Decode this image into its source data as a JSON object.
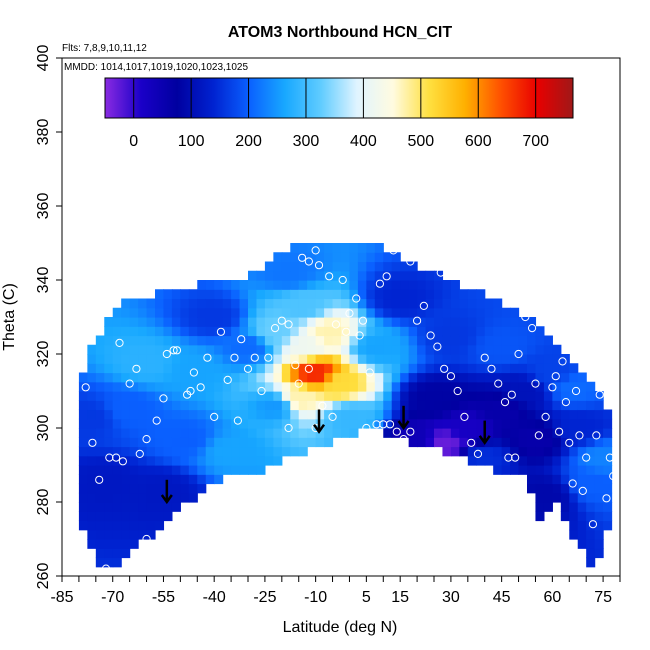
{
  "chart_data": {
    "type": "heatmap",
    "title": "ATOM3 Northbound HCN_CIT",
    "subtitle_flights": "Flts: 7,8,9,10,11,12",
    "subtitle_dates": "MMDD: 1014,1017,1019,1020,1023,1025",
    "xlabel": "Latitude (deg N)",
    "ylabel": "Theta (C)",
    "xlim": [
      -85,
      80
    ],
    "ylim": [
      260,
      400
    ],
    "x_ticks": [
      -85,
      -70,
      -55,
      -40,
      -25,
      -10,
      5,
      15,
      30,
      45,
      60,
      75
    ],
    "y_ticks": [
      260,
      280,
      300,
      320,
      340,
      360,
      380,
      400
    ],
    "colorbar": {
      "range": [
        -50,
        765
      ],
      "ticks": [
        0,
        100,
        200,
        300,
        400,
        500,
        600,
        700
      ],
      "colors": [
        "#8a2be2",
        "#1a00c8",
        "#0000a0",
        "#0022d0",
        "#0a60ff",
        "#18a8ff",
        "#60ccff",
        "#e0f4ff",
        "#fffbe0",
        "#ffe040",
        "#ffb000",
        "#ff5000",
        "#e80000",
        "#a01818"
      ]
    },
    "upper_boundary": [
      [
        -80,
        311
      ],
      [
        -77,
        321
      ],
      [
        -73,
        327
      ],
      [
        -66,
        335
      ],
      [
        -60,
        336
      ],
      [
        -53,
        337
      ],
      [
        -44,
        339
      ],
      [
        -38,
        339
      ],
      [
        -30,
        341
      ],
      [
        -25,
        344
      ],
      [
        -20,
        347
      ],
      [
        -15,
        350
      ],
      [
        -5,
        351
      ],
      [
        5,
        351
      ],
      [
        12,
        348
      ],
      [
        20,
        344
      ],
      [
        30,
        340
      ],
      [
        40,
        336
      ],
      [
        50,
        332
      ],
      [
        56,
        327
      ],
      [
        62,
        322
      ],
      [
        68,
        317
      ],
      [
        73,
        311
      ],
      [
        77,
        305
      ],
      [
        78,
        296
      ]
    ],
    "lower_boundary": [
      [
        -80,
        275
      ],
      [
        -73,
        261
      ],
      [
        -65,
        266
      ],
      [
        -50,
        278
      ],
      [
        -40,
        286
      ],
      [
        -28,
        287
      ],
      [
        -15,
        293
      ],
      [
        -5,
        296
      ],
      [
        5,
        300
      ],
      [
        8,
        299
      ],
      [
        15,
        297
      ],
      [
        28,
        294
      ],
      [
        40,
        290
      ],
      [
        48,
        286
      ],
      [
        52,
        288
      ],
      [
        56,
        278
      ],
      [
        57,
        271
      ],
      [
        60,
        284
      ],
      [
        63,
        276
      ],
      [
        68,
        268
      ],
      [
        72,
        262
      ],
      [
        75,
        265
      ],
      [
        78,
        285
      ]
    ],
    "value_field": [
      {
        "lat": -10,
        "theta": 315,
        "value": 670
      },
      {
        "lat": -3,
        "theta": 312,
        "value": 520
      },
      {
        "lat": -15,
        "theta": 308,
        "value": 470
      },
      {
        "lat": -6,
        "theta": 326,
        "value": 470
      },
      {
        "lat": -13,
        "theta": 322,
        "value": 420
      },
      {
        "lat": -14,
        "theta": 333,
        "value": 310
      },
      {
        "lat": -22,
        "theta": 326,
        "value": 330
      },
      {
        "lat": 0,
        "theta": 303,
        "value": 290
      },
      {
        "lat": -22,
        "theta": 306,
        "value": 250
      },
      {
        "lat": 8,
        "theta": 322,
        "value": 260
      },
      {
        "lat": -18,
        "theta": 342,
        "value": 220
      },
      {
        "lat": -60,
        "theta": 318,
        "value": 280
      },
      {
        "lat": -46,
        "theta": 316,
        "value": 260
      },
      {
        "lat": -66,
        "theta": 305,
        "value": 200
      },
      {
        "lat": -76,
        "theta": 303,
        "value": 160
      },
      {
        "lat": -72,
        "theta": 285,
        "value": 120
      },
      {
        "lat": -48,
        "theta": 297,
        "value": 200
      },
      {
        "lat": -36,
        "theta": 294,
        "value": 260
      },
      {
        "lat": -30,
        "theta": 322,
        "value": 210
      },
      {
        "lat": -40,
        "theta": 330,
        "value": 160
      },
      {
        "lat": 15,
        "theta": 335,
        "value": 140
      },
      {
        "lat": 30,
        "theta": 325,
        "value": 160
      },
      {
        "lat": 25,
        "theta": 308,
        "value": 80
      },
      {
        "lat": 35,
        "theta": 300,
        "value": 20
      },
      {
        "lat": 45,
        "theta": 305,
        "value": 60
      },
      {
        "lat": 20,
        "theta": 297,
        "value": 40
      },
      {
        "lat": 40,
        "theta": 292,
        "value": 150
      },
      {
        "lat": 52,
        "theta": 310,
        "value": 110
      },
      {
        "lat": 60,
        "theta": 315,
        "value": 170
      },
      {
        "lat": 68,
        "theta": 300,
        "value": 140
      },
      {
        "lat": 72,
        "theta": 285,
        "value": 200
      },
      {
        "lat": 58,
        "theta": 282,
        "value": 90
      },
      {
        "lat": 45,
        "theta": 322,
        "value": 190
      },
      {
        "lat": 66,
        "theta": 311,
        "value": 210
      },
      {
        "lat": 75,
        "theta": 292,
        "value": 230
      },
      {
        "lat": -55,
        "theta": 283,
        "value": 120
      },
      {
        "lat": 28,
        "theta": 296,
        "value": -30
      },
      {
        "lat": 55,
        "theta": 297,
        "value": 60
      }
    ],
    "observation_points": [
      [
        -78,
        311
      ],
      [
        -76,
        296
      ],
      [
        -74,
        286
      ],
      [
        -72,
        262
      ],
      [
        -71,
        292
      ],
      [
        -69,
        292
      ],
      [
        -67,
        291
      ],
      [
        -65,
        312
      ],
      [
        -62,
        293
      ],
      [
        -60,
        270
      ],
      [
        -57,
        302
      ],
      [
        -55,
        308
      ],
      [
        -54,
        320
      ],
      [
        -52,
        321
      ],
      [
        -51,
        321
      ],
      [
        -48,
        309
      ],
      [
        -47,
        310
      ],
      [
        -46,
        315
      ],
      [
        -44,
        311
      ],
      [
        -42,
        319
      ],
      [
        -40,
        303
      ],
      [
        -38,
        326
      ],
      [
        -36,
        313
      ],
      [
        -34,
        319
      ],
      [
        -32,
        324
      ],
      [
        -30,
        316
      ],
      [
        -28,
        319
      ],
      [
        -26,
        310
      ],
      [
        -24,
        319
      ],
      [
        -22,
        327
      ],
      [
        -20,
        329
      ],
      [
        -18,
        328
      ],
      [
        -16,
        317
      ],
      [
        -14,
        346
      ],
      [
        -12,
        345
      ],
      [
        -10,
        348
      ],
      [
        -9,
        344
      ],
      [
        -12,
        316
      ],
      [
        -15,
        312
      ],
      [
        -10,
        300
      ],
      [
        -8,
        306
      ],
      [
        -6,
        341
      ],
      [
        -4,
        328
      ],
      [
        -2,
        340
      ],
      [
        0,
        331
      ],
      [
        2,
        335
      ],
      [
        4,
        329
      ],
      [
        5,
        300
      ],
      [
        6,
        315
      ],
      [
        8,
        301
      ],
      [
        10,
        301
      ],
      [
        12,
        301
      ],
      [
        14,
        299
      ],
      [
        16,
        297
      ],
      [
        18,
        299
      ],
      [
        20,
        329
      ],
      [
        22,
        333
      ],
      [
        24,
        325
      ],
      [
        26,
        322
      ],
      [
        28,
        316
      ],
      [
        30,
        314
      ],
      [
        32,
        310
      ],
      [
        34,
        303
      ],
      [
        36,
        296
      ],
      [
        38,
        293
      ],
      [
        40,
        319
      ],
      [
        42,
        316
      ],
      [
        44,
        312
      ],
      [
        46,
        307
      ],
      [
        47,
        292
      ],
      [
        48,
        309
      ],
      [
        49,
        292
      ],
      [
        50,
        320
      ],
      [
        52,
        330
      ],
      [
        54,
        327
      ],
      [
        55,
        312
      ],
      [
        56,
        298
      ],
      [
        58,
        303
      ],
      [
        60,
        311
      ],
      [
        61,
        314
      ],
      [
        62,
        299
      ],
      [
        63,
        318
      ],
      [
        64,
        307
      ],
      [
        65,
        296
      ],
      [
        66,
        285
      ],
      [
        67,
        310
      ],
      [
        68,
        298
      ],
      [
        69,
        283
      ],
      [
        70,
        292
      ],
      [
        72,
        274
      ],
      [
        73,
        298
      ],
      [
        74,
        309
      ],
      [
        76,
        281
      ],
      [
        77,
        292
      ],
      [
        78,
        287
      ],
      [
        -68,
        323
      ],
      [
        -63,
        316
      ],
      [
        -60,
        297
      ],
      [
        -33,
        302
      ],
      [
        -18,
        300
      ],
      [
        -5,
        303
      ],
      [
        -1,
        326
      ],
      [
        3,
        325
      ],
      [
        9,
        339
      ],
      [
        11,
        341
      ],
      [
        13,
        348
      ],
      [
        18,
        345
      ],
      [
        22,
        345
      ],
      [
        27,
        342
      ],
      [
        36,
        343
      ],
      [
        43,
        341
      ],
      [
        56,
        335
      ],
      [
        60,
        330
      ],
      [
        64,
        324
      ],
      [
        67,
        321
      ],
      [
        71,
        320
      ]
    ],
    "arrows": [
      [
        -54,
        280
      ],
      [
        -9,
        299
      ],
      [
        16,
        300
      ],
      [
        40,
        296
      ]
    ]
  }
}
